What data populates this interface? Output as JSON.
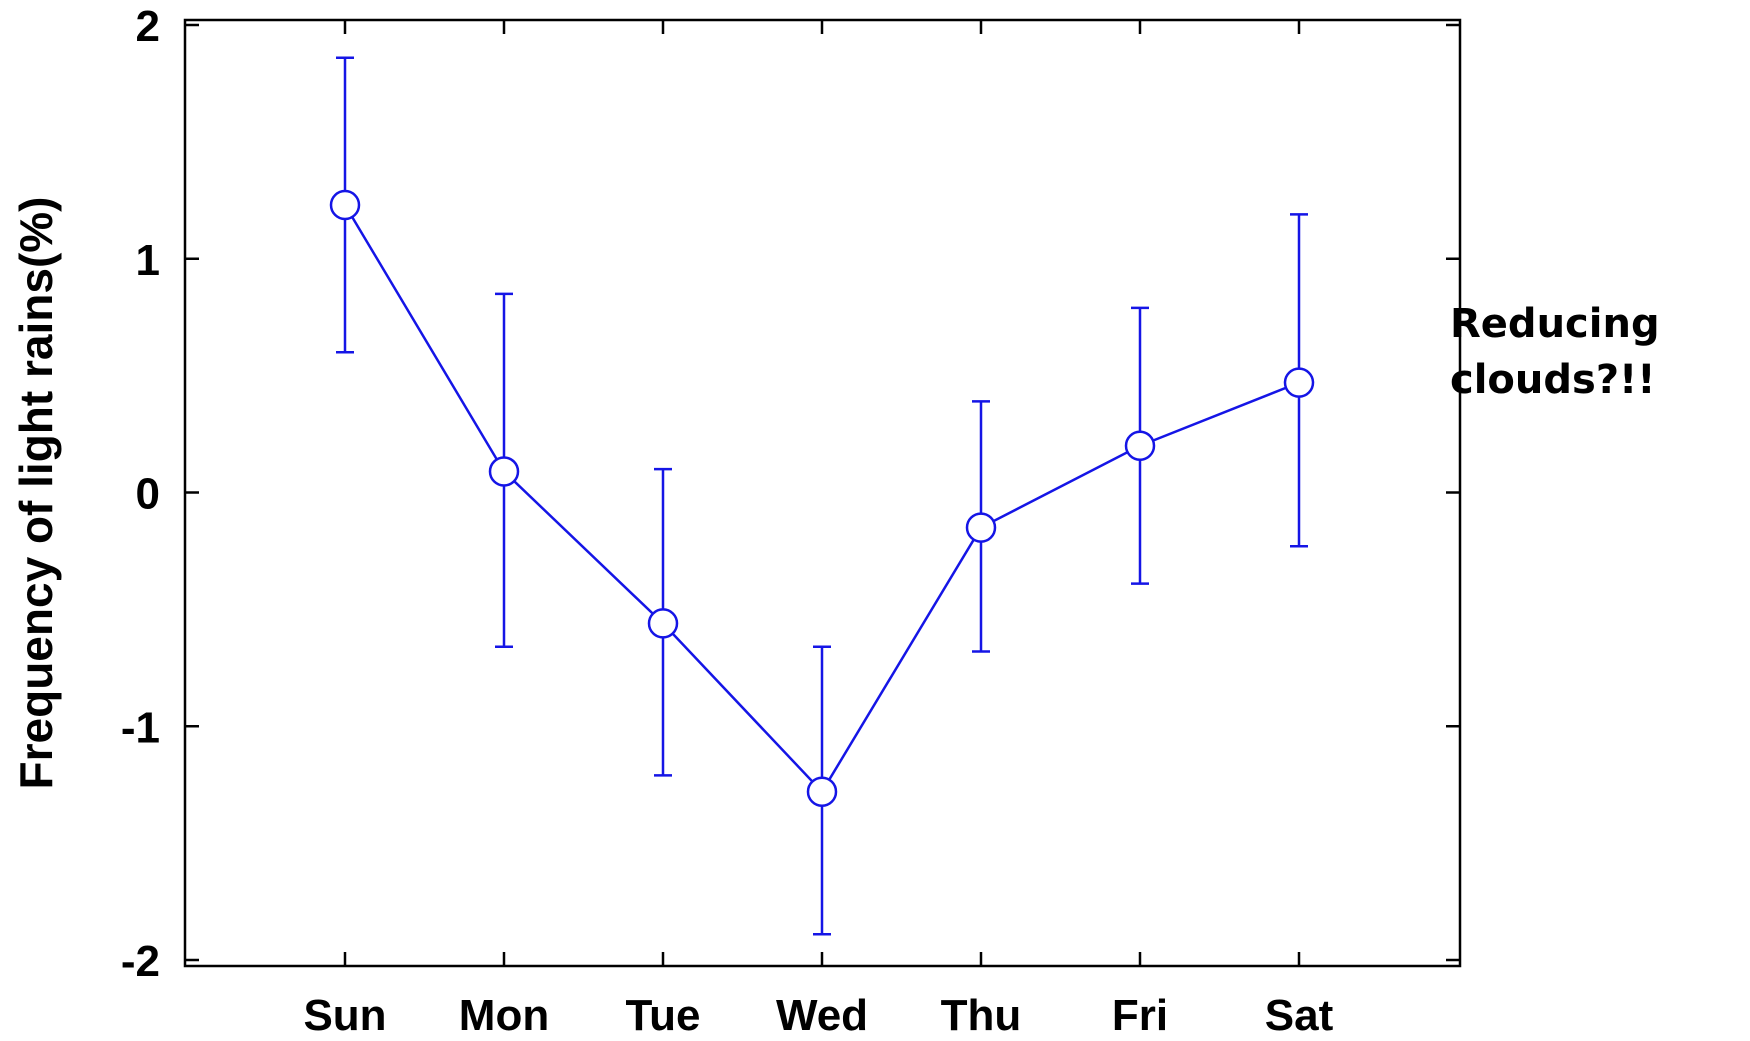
{
  "chart_data": {
    "type": "line",
    "categories": [
      "Sun",
      "Mon",
      "Tue",
      "Wed",
      "Thu",
      "Fri",
      "Sat"
    ],
    "series": [
      {
        "values": [
          1.23,
          0.09,
          -0.56,
          -1.28,
          -0.15,
          0.2,
          0.47
        ],
        "error_lower": [
          0.6,
          -0.66,
          -1.21,
          -1.89,
          -0.68,
          -0.39,
          -0.23
        ],
        "error_upper": [
          1.86,
          0.85,
          0.1,
          -0.66,
          0.39,
          0.79,
          1.19
        ],
        "color": "#1515e6",
        "marker": "open-circle"
      }
    ],
    "ylabel": "Frequency of light rains(%)",
    "xlabel": "",
    "title": "",
    "ylim": [
      -2,
      2
    ],
    "yticks": [
      "-2",
      "-1",
      "0",
      "1",
      "2"
    ],
    "grid": false,
    "legend": "none"
  },
  "annotation": {
    "line1": "Reducing",
    "line2": "clouds?!!"
  }
}
